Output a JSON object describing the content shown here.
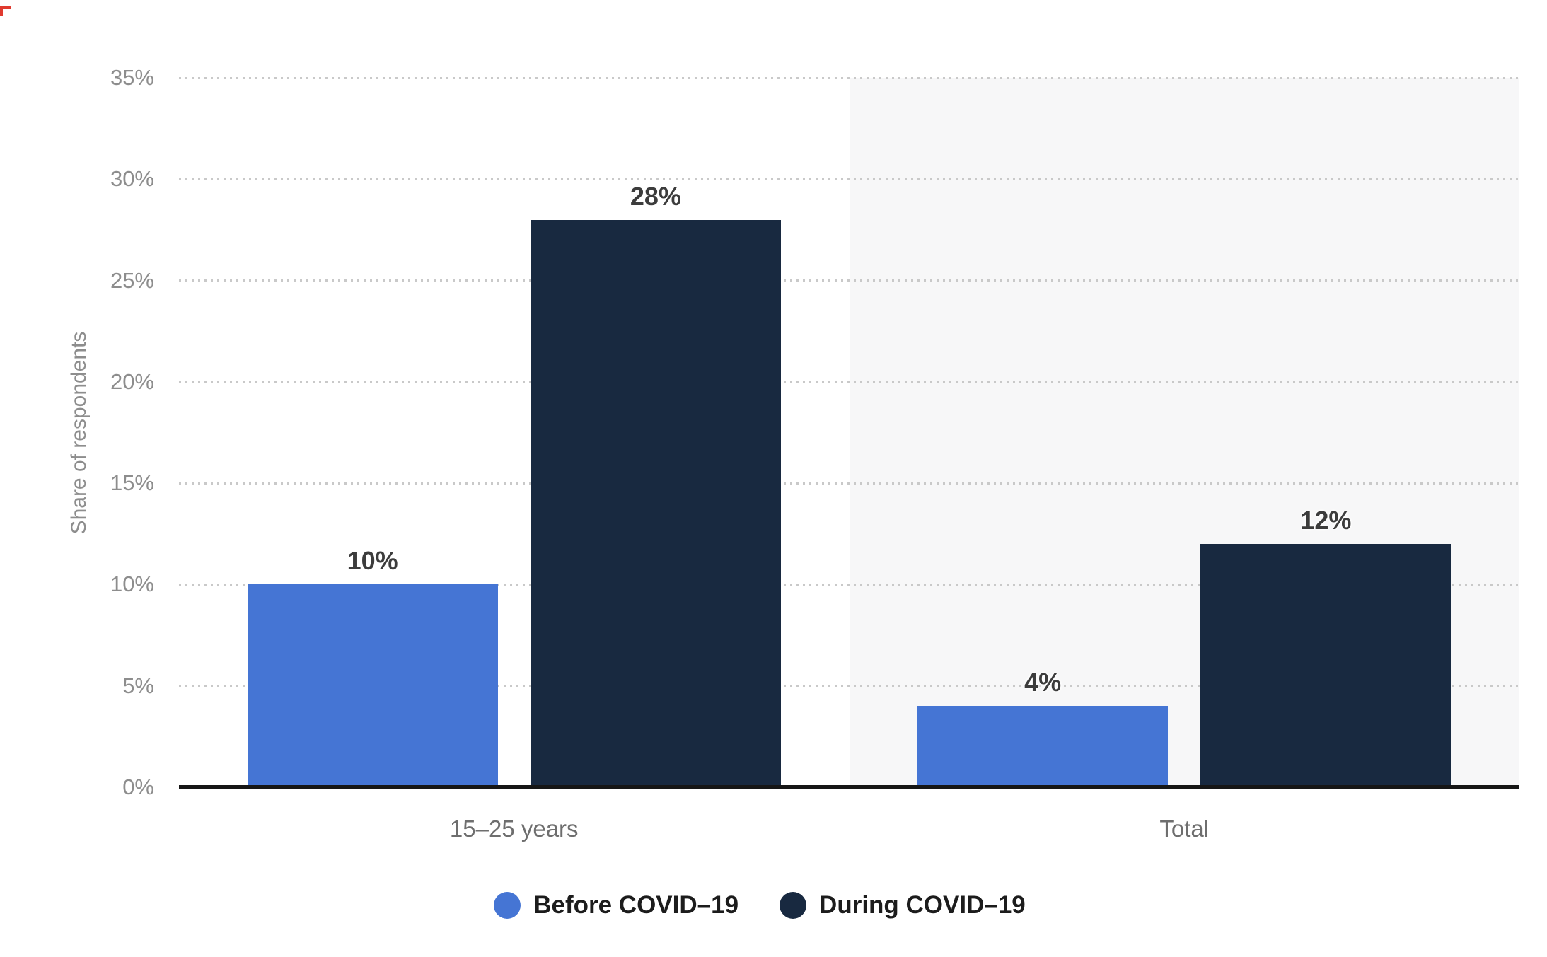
{
  "chart_data": {
    "type": "bar",
    "title": "",
    "xlabel": "",
    "ylabel": "Share of respondents",
    "unit": "%",
    "categories": [
      "15–25 years",
      "Total"
    ],
    "series": [
      {
        "name": "Before COVID–19",
        "color": "#4575d4",
        "values": [
          10,
          4
        ]
      },
      {
        "name": "During COVID–19",
        "color": "#182940",
        "values": [
          28,
          12
        ]
      }
    ],
    "value_labels": {
      "Before COVID–19": [
        "10%",
        "4%"
      ],
      "During COVID–19": [
        "28%",
        "12%"
      ]
    },
    "ylim": [
      0,
      35
    ],
    "y_ticks": [
      0,
      5,
      10,
      15,
      20,
      25,
      30,
      35
    ],
    "y_tick_labels": [
      "0%",
      "5%",
      "10%",
      "15%",
      "20%",
      "25%",
      "30%",
      "35%"
    ],
    "grid": "horizontal-dotted",
    "legend_position": "bottom",
    "alternating_band_color": "#f7f7f8"
  },
  "styles": {
    "grid_color": "#c9c9c9",
    "axis_line_color": "#161616",
    "tick_label_color": "#8d8d8d",
    "category_label_color": "#6e6e6e",
    "value_label_color": "#3c3c3c",
    "legend_text_color": "#1c1c1c",
    "background_color": "#ffffff"
  }
}
